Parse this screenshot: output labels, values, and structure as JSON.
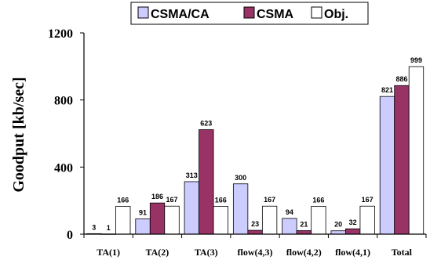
{
  "chart_data": {
    "type": "bar",
    "categories": [
      "TA(1)",
      "TA(2)",
      "TA(3)",
      "flow(4,3)",
      "flow(4,2)",
      "flow(4,1)",
      "Total"
    ],
    "series": [
      {
        "name": "CSMA/CA",
        "color": "#ccccff",
        "values": [
          3,
          91,
          313,
          300,
          94,
          20,
          821
        ]
      },
      {
        "name": "CSMA",
        "color": "#993366",
        "values": [
          1,
          186,
          623,
          23,
          21,
          32,
          886
        ]
      },
      {
        "name": "Obj.",
        "color": "#ffffff",
        "values": [
          166,
          167,
          166,
          167,
          166,
          167,
          999
        ]
      }
    ],
    "ylabel": "Goodput [kb/sec]",
    "xlabel": "",
    "ylim": [
      0,
      1200
    ],
    "yticks": [
      0,
      400,
      800,
      1200
    ],
    "legend_position": "top",
    "grid": false
  }
}
